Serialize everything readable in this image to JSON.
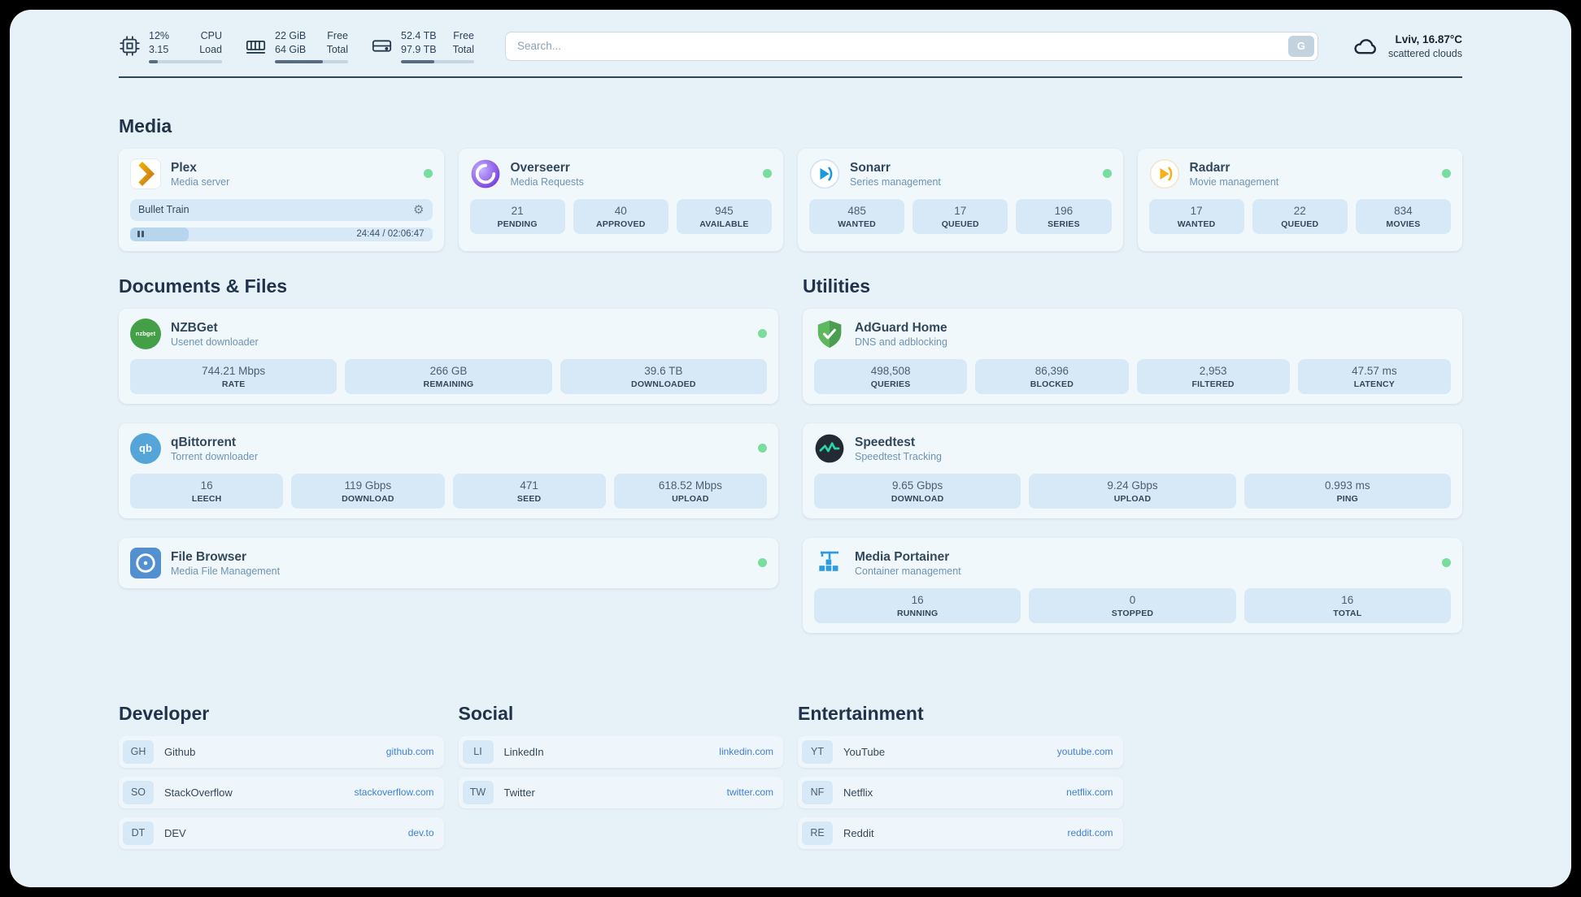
{
  "theme": {
    "bg": "#e7f1f8",
    "card_bg": "#f0f8fc",
    "tile_bg": "#d7e9f6",
    "text": "#33475b",
    "accent": "#3f7fd4",
    "status_green": "#79dd9e"
  },
  "topbar": {
    "cpu": {
      "value1": "12%",
      "label1": "CPU",
      "value2": "3.15",
      "label2": "Load",
      "percent": 12
    },
    "ram": {
      "value1": "22 GiB",
      "label1": "Free",
      "value2": "64 GiB",
      "label2": "Total",
      "percent": 66
    },
    "disk": {
      "value1": "52.4 TB",
      "label1": "Free",
      "value2": "97.9 TB",
      "label2": "Total",
      "percent": 46
    },
    "search": {
      "placeholder": "Search...",
      "button_label": "G"
    },
    "weather": {
      "location": "Lviv, 16.87°C",
      "condition": "scattered clouds"
    }
  },
  "media": {
    "title": "Media",
    "plex": {
      "name": "Plex",
      "desc": "Media server",
      "now_playing_title": "Bullet Train",
      "time": "24:44 / 02:06:47",
      "progress_percent": 19.5
    },
    "overseerr": {
      "name": "Overseerr",
      "desc": "Media Requests",
      "stats": [
        {
          "value": "21",
          "label": "PENDING"
        },
        {
          "value": "40",
          "label": "APPROVED"
        },
        {
          "value": "945",
          "label": "AVAILABLE"
        }
      ]
    },
    "sonarr": {
      "name": "Sonarr",
      "desc": "Series management",
      "stats": [
        {
          "value": "485",
          "label": "WANTED"
        },
        {
          "value": "17",
          "label": "QUEUED"
        },
        {
          "value": "196",
          "label": "SERIES"
        }
      ]
    },
    "radarr": {
      "name": "Radarr",
      "desc": "Movie management",
      "stats": [
        {
          "value": "17",
          "label": "WANTED"
        },
        {
          "value": "22",
          "label": "QUEUED"
        },
        {
          "value": "834",
          "label": "MOVIES"
        }
      ]
    }
  },
  "documents": {
    "title": "Documents & Files",
    "nzbget": {
      "name": "NZBGet",
      "desc": "Usenet downloader",
      "icon_text": "nzbget",
      "stats": [
        {
          "value": "744.21 Mbps",
          "label": "RATE"
        },
        {
          "value": "266 GB",
          "label": "REMAINING"
        },
        {
          "value": "39.6 TB",
          "label": "DOWNLOADED"
        }
      ]
    },
    "qbittorrent": {
      "name": "qBittorrent",
      "desc": "Torrent downloader",
      "icon_text": "qb",
      "stats": [
        {
          "value": "16",
          "label": "LEECH"
        },
        {
          "value": "119 Gbps",
          "label": "DOWNLOAD"
        },
        {
          "value": "471",
          "label": "SEED"
        },
        {
          "value": "618.52 Mbps",
          "label": "UPLOAD"
        }
      ]
    },
    "filebrowser": {
      "name": "File Browser",
      "desc": "Media File Management"
    }
  },
  "utilities": {
    "title": "Utilities",
    "adguard": {
      "name": "AdGuard Home",
      "desc": "DNS and adblocking",
      "stats": [
        {
          "value": "498,508",
          "label": "QUERIES"
        },
        {
          "value": "86,396",
          "label": "BLOCKED"
        },
        {
          "value": "2,953",
          "label": "FILTERED"
        },
        {
          "value": "47.57 ms",
          "label": "LATENCY"
        }
      ]
    },
    "speedtest": {
      "name": "Speedtest",
      "desc": "Speedtest Tracking",
      "stats": [
        {
          "value": "9.65 Gbps",
          "label": "DOWNLOAD"
        },
        {
          "value": "9.24 Gbps",
          "label": "UPLOAD"
        },
        {
          "value": "0.993 ms",
          "label": "PING"
        }
      ]
    },
    "portainer": {
      "name": "Media Portainer",
      "desc": "Container management",
      "stats": [
        {
          "value": "16",
          "label": "RUNNING"
        },
        {
          "value": "0",
          "label": "STOPPED"
        },
        {
          "value": "16",
          "label": "TOTAL"
        }
      ]
    }
  },
  "bookmarks": {
    "developer": {
      "title": "Developer",
      "items": [
        {
          "abbr": "GH",
          "name": "Github",
          "domain": "github.com"
        },
        {
          "abbr": "SO",
          "name": "StackOverflow",
          "domain": "stackoverflow.com"
        },
        {
          "abbr": "DT",
          "name": "DEV",
          "domain": "dev.to"
        }
      ]
    },
    "social": {
      "title": "Social",
      "items": [
        {
          "abbr": "LI",
          "name": "LinkedIn",
          "domain": "linkedin.com"
        },
        {
          "abbr": "TW",
          "name": "Twitter",
          "domain": "twitter.com"
        }
      ]
    },
    "entertainment": {
      "title": "Entertainment",
      "items": [
        {
          "abbr": "YT",
          "name": "YouTube",
          "domain": "youtube.com"
        },
        {
          "abbr": "NF",
          "name": "Netflix",
          "domain": "netflix.com"
        },
        {
          "abbr": "RE",
          "name": "Reddit",
          "domain": "reddit.com"
        }
      ]
    }
  }
}
